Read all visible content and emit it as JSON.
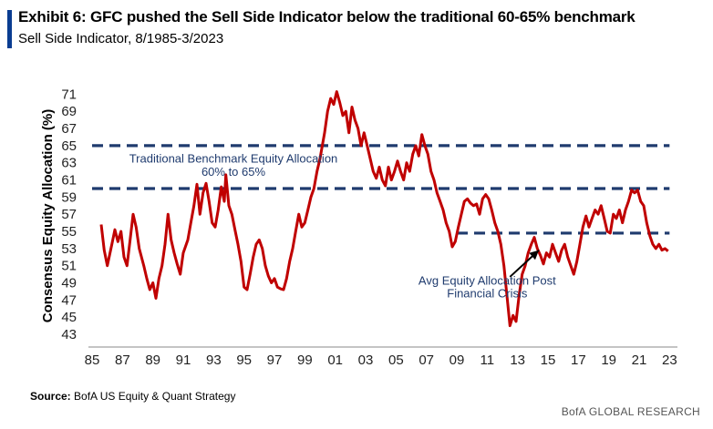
{
  "header": {
    "title": "Exhibit 6: GFC pushed the Sell Side Indicator below the traditional 60-65% benchmark",
    "subtitle": "Sell Side Indicator, 8/1985-3/2023"
  },
  "footer": {
    "source_label": "Source:",
    "source_text": "BofA US Equity & Quant Strategy",
    "brand": "BofA GLOBAL RESEARCH"
  },
  "colors": {
    "line": "#c00000",
    "dash": "#1f3b6e",
    "accent": "#0a3d91"
  },
  "chart_data": {
    "type": "line",
    "ylabel": "Consensus Equity Allocation (%)",
    "ylim": [
      43,
      72
    ],
    "xlim": [
      1985,
      2023.4
    ],
    "yticks": [
      43,
      45,
      47,
      49,
      51,
      53,
      55,
      57,
      59,
      61,
      63,
      65,
      67,
      69,
      71
    ],
    "xticks": [
      {
        "x": 1985,
        "label": "85"
      },
      {
        "x": 1987,
        "label": "87"
      },
      {
        "x": 1989,
        "label": "89"
      },
      {
        "x": 1991,
        "label": "91"
      },
      {
        "x": 1993,
        "label": "93"
      },
      {
        "x": 1995,
        "label": "95"
      },
      {
        "x": 1997,
        "label": "97"
      },
      {
        "x": 1999,
        "label": "99"
      },
      {
        "x": 2001,
        "label": "01"
      },
      {
        "x": 2003,
        "label": "03"
      },
      {
        "x": 2005,
        "label": "05"
      },
      {
        "x": 2007,
        "label": "07"
      },
      {
        "x": 2009,
        "label": "09"
      },
      {
        "x": 2011,
        "label": "11"
      },
      {
        "x": 2013,
        "label": "13"
      },
      {
        "x": 2015,
        "label": "15"
      },
      {
        "x": 2017,
        "label": "17"
      },
      {
        "x": 2019,
        "label": "19"
      },
      {
        "x": 2021,
        "label": "21"
      },
      {
        "x": 2023,
        "label": "23"
      }
    ],
    "reference_lines": [
      {
        "y": 65,
        "x_start": 1985,
        "x_end": 2023
      },
      {
        "y": 60,
        "x_start": 1985,
        "x_end": 2023
      },
      {
        "y": 54.8,
        "x_start": 2009,
        "x_end": 2023
      }
    ],
    "annotations": [
      {
        "text": "Traditional Benchmark Equity Allocation",
        "x": 1994.3,
        "y": 63.0
      },
      {
        "text": "60% to 65%",
        "x": 1994.3,
        "y": 61.5
      },
      {
        "text": "Avg Equity Allocation Post",
        "x": 2011.0,
        "y": 48.8
      },
      {
        "text": "Financial Crisis",
        "x": 2011.0,
        "y": 47.3
      }
    ],
    "arrow": {
      "from": [
        2012.5,
        49.7
      ],
      "to": [
        2014.4,
        52.8
      ]
    },
    "series": [
      {
        "values": [
          [
            1985.6,
            55.8
          ],
          [
            1985.8,
            52.8
          ],
          [
            1986.0,
            51.0
          ],
          [
            1986.3,
            53.5
          ],
          [
            1986.5,
            55.2
          ],
          [
            1986.7,
            53.8
          ],
          [
            1986.9,
            55.0
          ],
          [
            1987.1,
            52.0
          ],
          [
            1987.3,
            51.0
          ],
          [
            1987.5,
            54.0
          ],
          [
            1987.7,
            57.0
          ],
          [
            1987.9,
            55.5
          ],
          [
            1988.1,
            53.0
          ],
          [
            1988.4,
            51.0
          ],
          [
            1988.6,
            49.5
          ],
          [
            1988.8,
            48.2
          ],
          [
            1989.0,
            49.0
          ],
          [
            1989.2,
            47.2
          ],
          [
            1989.4,
            49.5
          ],
          [
            1989.6,
            51.0
          ],
          [
            1989.8,
            53.5
          ],
          [
            1990.0,
            57.0
          ],
          [
            1990.2,
            54.0
          ],
          [
            1990.4,
            52.5
          ],
          [
            1990.6,
            51.2
          ],
          [
            1990.8,
            50.0
          ],
          [
            1991.0,
            52.5
          ],
          [
            1991.3,
            54.0
          ],
          [
            1991.5,
            56.0
          ],
          [
            1991.7,
            58.0
          ],
          [
            1991.9,
            60.5
          ],
          [
            1992.1,
            57.0
          ],
          [
            1992.3,
            59.5
          ],
          [
            1992.5,
            60.6
          ],
          [
            1992.7,
            58.5
          ],
          [
            1992.9,
            56.0
          ],
          [
            1993.1,
            55.5
          ],
          [
            1993.3,
            57.5
          ],
          [
            1993.5,
            60.2
          ],
          [
            1993.7,
            58.5
          ],
          [
            1993.8,
            61.6
          ],
          [
            1994.0,
            58.0
          ],
          [
            1994.2,
            57.0
          ],
          [
            1994.4,
            55.2
          ],
          [
            1994.6,
            53.5
          ],
          [
            1994.8,
            51.5
          ],
          [
            1995.0,
            48.5
          ],
          [
            1995.2,
            48.2
          ],
          [
            1995.4,
            50.0
          ],
          [
            1995.6,
            52.0
          ],
          [
            1995.8,
            53.5
          ],
          [
            1996.0,
            54.0
          ],
          [
            1996.2,
            53.0
          ],
          [
            1996.4,
            51.0
          ],
          [
            1996.6,
            49.8
          ],
          [
            1996.8,
            49.0
          ],
          [
            1997.0,
            49.5
          ],
          [
            1997.2,
            48.5
          ],
          [
            1997.4,
            48.3
          ],
          [
            1997.6,
            48.2
          ],
          [
            1997.8,
            49.5
          ],
          [
            1998.0,
            51.5
          ],
          [
            1998.2,
            53.0
          ],
          [
            1998.4,
            55.0
          ],
          [
            1998.6,
            57.0
          ],
          [
            1998.8,
            55.5
          ],
          [
            1999.0,
            56.0
          ],
          [
            1999.2,
            57.5
          ],
          [
            1999.4,
            59.0
          ],
          [
            1999.6,
            60.0
          ],
          [
            1999.8,
            62.0
          ],
          [
            2000.0,
            63.5
          ],
          [
            2000.3,
            66.5
          ],
          [
            2000.5,
            69.0
          ],
          [
            2000.7,
            70.5
          ],
          [
            2000.9,
            69.8
          ],
          [
            2001.1,
            71.3
          ],
          [
            2001.3,
            70.0
          ],
          [
            2001.5,
            68.5
          ],
          [
            2001.7,
            69.0
          ],
          [
            2001.9,
            66.5
          ],
          [
            2002.1,
            69.5
          ],
          [
            2002.3,
            68.0
          ],
          [
            2002.5,
            67.0
          ],
          [
            2002.7,
            65.0
          ],
          [
            2002.9,
            66.5
          ],
          [
            2003.1,
            65.0
          ],
          [
            2003.3,
            63.5
          ],
          [
            2003.5,
            62.0
          ],
          [
            2003.7,
            61.2
          ],
          [
            2003.9,
            62.5
          ],
          [
            2004.1,
            61.0
          ],
          [
            2004.3,
            60.3
          ],
          [
            2004.5,
            62.5
          ],
          [
            2004.7,
            61.0
          ],
          [
            2004.9,
            62.0
          ],
          [
            2005.1,
            63.2
          ],
          [
            2005.3,
            62.0
          ],
          [
            2005.5,
            61.0
          ],
          [
            2005.7,
            63.0
          ],
          [
            2005.9,
            62.0
          ],
          [
            2006.1,
            64.0
          ],
          [
            2006.3,
            65.0
          ],
          [
            2006.5,
            63.8
          ],
          [
            2006.7,
            66.3
          ],
          [
            2006.9,
            65.0
          ],
          [
            2007.1,
            64.0
          ],
          [
            2007.3,
            62.0
          ],
          [
            2007.5,
            61.0
          ],
          [
            2007.7,
            59.5
          ],
          [
            2007.9,
            58.5
          ],
          [
            2008.1,
            57.5
          ],
          [
            2008.3,
            56.0
          ],
          [
            2008.5,
            55.0
          ],
          [
            2008.7,
            53.2
          ],
          [
            2008.9,
            53.8
          ],
          [
            2009.1,
            55.5
          ],
          [
            2009.3,
            57.0
          ],
          [
            2009.5,
            58.5
          ],
          [
            2009.7,
            58.8
          ],
          [
            2009.9,
            58.3
          ],
          [
            2010.1,
            58.0
          ],
          [
            2010.3,
            58.2
          ],
          [
            2010.5,
            57.0
          ],
          [
            2010.7,
            58.8
          ],
          [
            2010.9,
            59.3
          ],
          [
            2011.1,
            58.8
          ],
          [
            2011.3,
            57.5
          ],
          [
            2011.5,
            56.0
          ],
          [
            2011.7,
            55.0
          ],
          [
            2011.9,
            53.5
          ],
          [
            2012.1,
            51.0
          ],
          [
            2012.3,
            47.5
          ],
          [
            2012.5,
            44.0
          ],
          [
            2012.7,
            45.2
          ],
          [
            2012.9,
            44.5
          ],
          [
            2013.1,
            47.5
          ],
          [
            2013.3,
            50.0
          ],
          [
            2013.5,
            51.0
          ],
          [
            2013.7,
            52.5
          ],
          [
            2013.9,
            53.5
          ],
          [
            2014.1,
            54.3
          ],
          [
            2014.3,
            53.0
          ],
          [
            2014.5,
            52.2
          ],
          [
            2014.7,
            51.2
          ],
          [
            2014.9,
            52.5
          ],
          [
            2015.1,
            52.0
          ],
          [
            2015.3,
            53.5
          ],
          [
            2015.5,
            52.5
          ],
          [
            2015.7,
            51.5
          ],
          [
            2015.9,
            52.8
          ],
          [
            2016.1,
            53.5
          ],
          [
            2016.3,
            52.0
          ],
          [
            2016.5,
            51.0
          ],
          [
            2016.7,
            50.0
          ],
          [
            2016.9,
            51.5
          ],
          [
            2017.1,
            53.5
          ],
          [
            2017.3,
            55.5
          ],
          [
            2017.5,
            56.8
          ],
          [
            2017.7,
            55.5
          ],
          [
            2017.9,
            56.5
          ],
          [
            2018.1,
            57.5
          ],
          [
            2018.3,
            57.0
          ],
          [
            2018.5,
            58.0
          ],
          [
            2018.7,
            56.5
          ],
          [
            2018.9,
            55.0
          ],
          [
            2019.1,
            54.8
          ],
          [
            2019.3,
            57.0
          ],
          [
            2019.5,
            56.5
          ],
          [
            2019.7,
            57.5
          ],
          [
            2019.9,
            56.0
          ],
          [
            2020.1,
            57.5
          ],
          [
            2020.3,
            58.5
          ],
          [
            2020.5,
            59.8
          ],
          [
            2020.7,
            59.5
          ],
          [
            2020.9,
            59.8
          ],
          [
            2021.1,
            58.5
          ],
          [
            2021.3,
            58.0
          ],
          [
            2021.5,
            56.0
          ],
          [
            2021.7,
            54.5
          ],
          [
            2021.9,
            53.5
          ],
          [
            2022.1,
            53.0
          ],
          [
            2022.3,
            53.5
          ],
          [
            2022.5,
            52.8
          ],
          [
            2022.7,
            53.0
          ],
          [
            2022.9,
            52.7
          ]
        ]
      }
    ]
  }
}
